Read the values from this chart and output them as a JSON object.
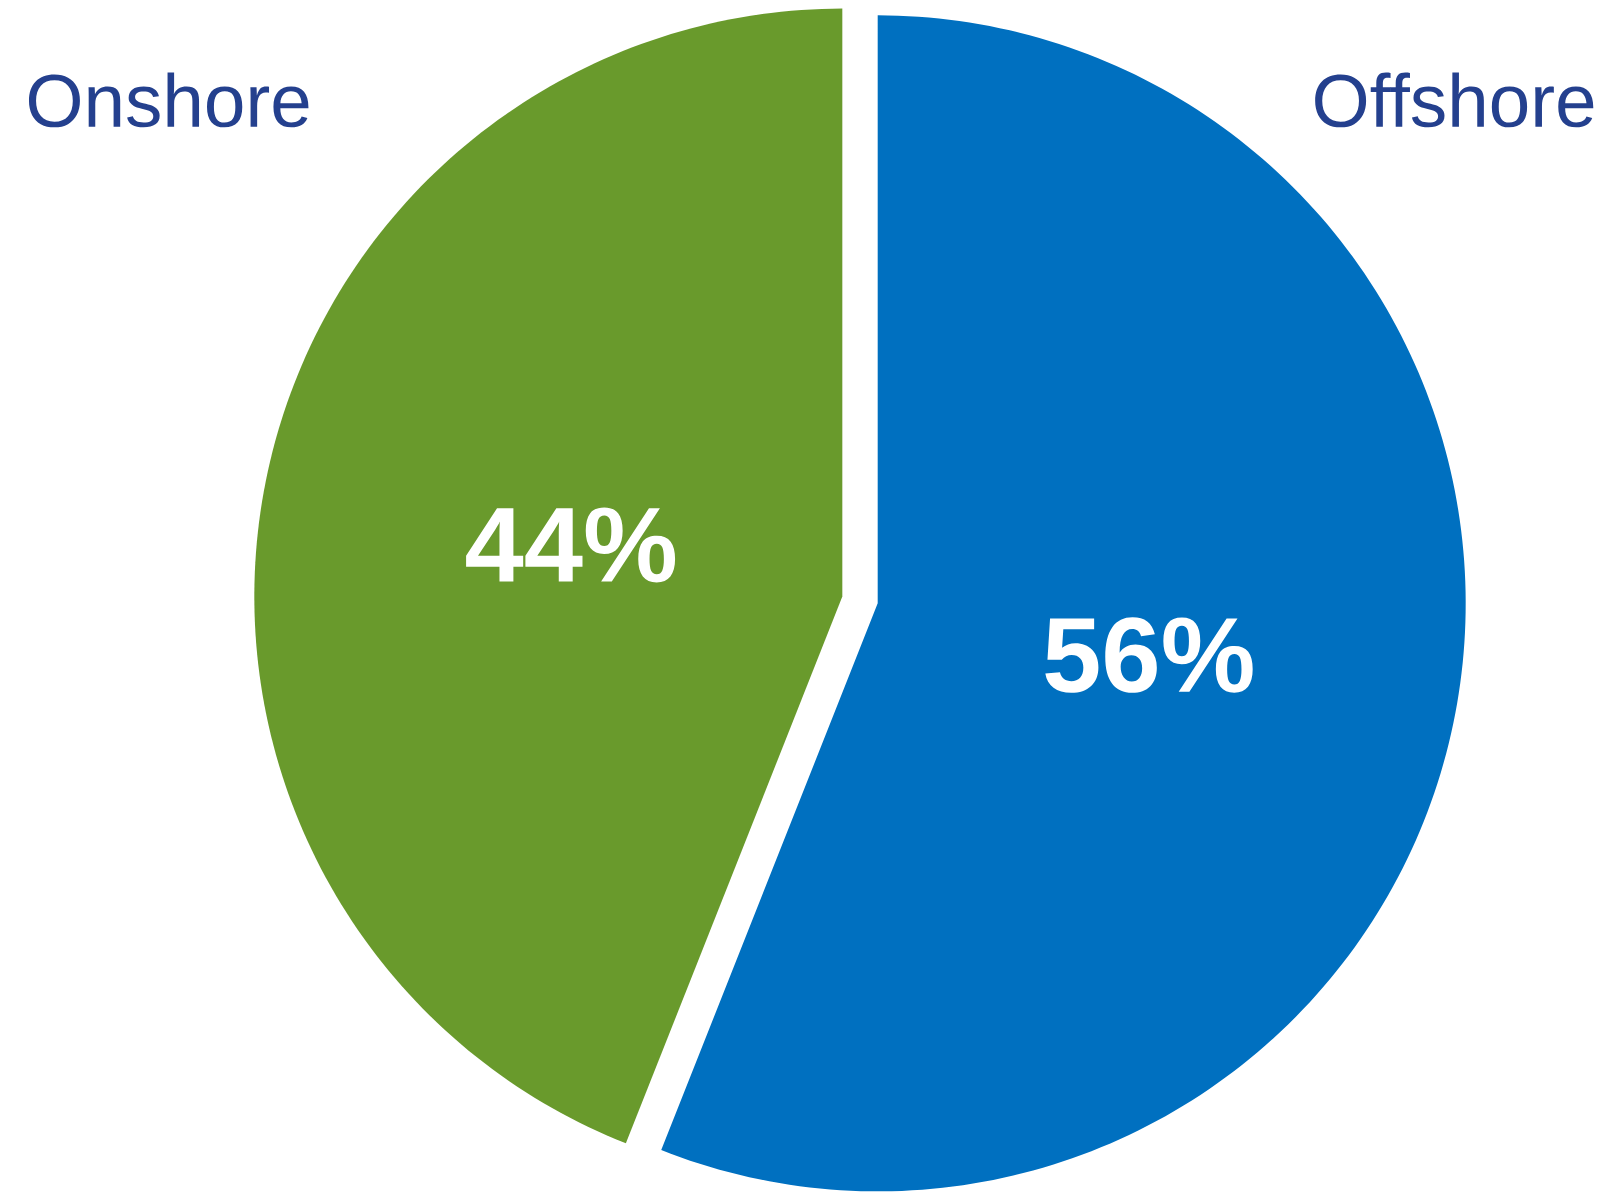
{
  "chart_data": {
    "type": "pie",
    "categories": [
      "Onshore",
      "Offshore"
    ],
    "values": [
      44,
      56
    ],
    "colors": [
      "#699a2c",
      "#0070c0"
    ],
    "value_labels": [
      "44%",
      "56%"
    ]
  }
}
